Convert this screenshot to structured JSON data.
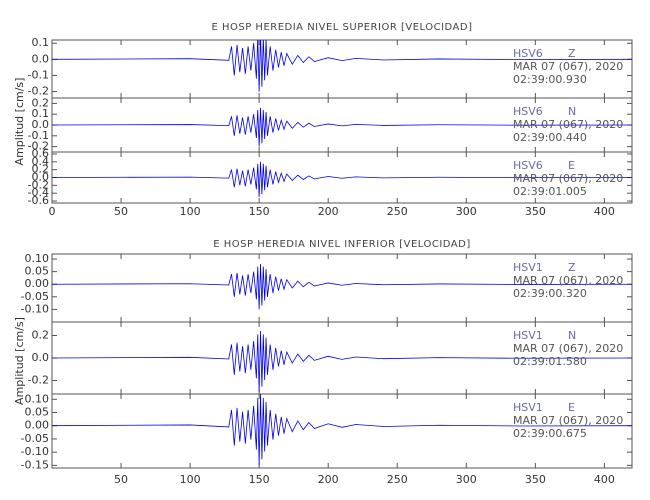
{
  "chart_data": [
    {
      "type": "line",
      "title": "E HOSP HEREDIA NIVEL SUPERIOR [VELOCIDAD]",
      "ylabel": "Amplitud [cm/s]",
      "xlim": [
        0,
        420
      ],
      "xticks": [
        0,
        50,
        100,
        150,
        200,
        250,
        300,
        350,
        400
      ],
      "x": [
        0,
        100,
        128,
        130,
        132,
        134,
        136,
        138,
        140,
        142,
        144,
        146,
        148,
        149,
        150,
        151,
        152,
        153,
        154,
        155,
        156,
        158,
        160,
        162,
        164,
        166,
        168,
        170,
        174,
        178,
        182,
        186,
        190,
        200,
        210,
        220,
        240,
        280,
        340,
        420
      ],
      "panels": [
        {
          "station": "HSV6",
          "component": "Z",
          "date": "MAR 07 (067), 2020",
          "time": "02:39:00.930",
          "color": "#0000ee",
          "ylim": [
            -0.24,
            0.12
          ],
          "yticks": [
            0.1,
            {
              "value": 0,
              "label": "0.0"
            },
            -0.1,
            -0.2
          ],
          "values": [
            0,
            0.004,
            -0.006,
            0.08,
            -0.1,
            0.09,
            -0.08,
            0.07,
            -0.09,
            0.08,
            -0.07,
            0.1,
            -0.12,
            0.14,
            -0.2,
            0.16,
            -0.17,
            0.14,
            -0.13,
            0.12,
            -0.1,
            0.08,
            -0.07,
            0.06,
            -0.05,
            0.044,
            -0.04,
            0.036,
            -0.03,
            0.024,
            -0.02,
            0.016,
            -0.014,
            0.01,
            -0.008,
            0.006,
            -0.004,
            0.0024,
            -0.0016,
            0
          ]
        },
        {
          "station": "HSV6",
          "component": "N",
          "date": "MAR 07 (067), 2020",
          "time": "02:39:00.440",
          "color": "#0000ee",
          "ylim": [
            -0.25,
            0.25
          ],
          "yticks": [
            0.2,
            0.1,
            {
              "value": 0,
              "label": "0.0"
            },
            -0.1,
            -0.2
          ],
          "values": [
            0,
            0.004,
            -0.006,
            0.08,
            -0.1,
            0.09,
            -0.08,
            0.07,
            -0.09,
            0.08,
            -0.07,
            0.1,
            -0.12,
            0.14,
            -0.2,
            0.16,
            -0.17,
            0.14,
            -0.13,
            0.12,
            -0.1,
            0.08,
            -0.07,
            0.06,
            -0.05,
            0.044,
            -0.04,
            0.036,
            -0.03,
            0.024,
            -0.02,
            0.016,
            -0.014,
            0.01,
            -0.008,
            0.006,
            -0.004,
            0.0024,
            -0.0016,
            0
          ]
        },
        {
          "station": "HSV6",
          "component": "E",
          "date": "MAR 07 (067), 2020",
          "time": "02:39:01.005",
          "color": "#0000ee",
          "ylim": [
            -0.65,
            0.65
          ],
          "yticks": [
            0.6,
            0.4,
            0.2,
            {
              "value": 0,
              "label": "0.0"
            },
            -0.2,
            -0.4,
            -0.6
          ],
          "values": [
            0,
            0.01,
            -0.015,
            0.2,
            -0.25,
            0.225,
            -0.2,
            0.175,
            -0.225,
            0.2,
            -0.175,
            0.25,
            -0.3,
            0.35,
            -0.5,
            0.4,
            -0.425,
            0.35,
            -0.325,
            0.3,
            -0.25,
            0.2,
            -0.175,
            0.15,
            -0.125,
            0.11,
            -0.1,
            0.09,
            -0.075,
            0.06,
            -0.05,
            0.04,
            -0.035,
            0.025,
            -0.02,
            0.015,
            -0.01,
            0.006,
            -0.004,
            0
          ]
        }
      ]
    },
    {
      "type": "line",
      "title": "E HOSP HEREDIA NIVEL INFERIOR [VELOCIDAD]",
      "ylabel": "Amplitud [cm/s]",
      "xlim": [
        0,
        420
      ],
      "xticks": [
        50,
        100,
        150,
        200,
        250,
        300,
        350,
        400
      ],
      "x": [
        0,
        100,
        128,
        130,
        132,
        134,
        136,
        138,
        140,
        142,
        144,
        146,
        148,
        149,
        150,
        151,
        152,
        153,
        154,
        155,
        156,
        158,
        160,
        162,
        164,
        166,
        168,
        170,
        174,
        178,
        182,
        186,
        190,
        200,
        210,
        220,
        240,
        280,
        340,
        420
      ],
      "panels": [
        {
          "station": "HSV1",
          "component": "Z",
          "date": "MAR 07 (067), 2020",
          "time": "02:39:00.320",
          "color": "#0000ee",
          "ylim": [
            -0.15,
            0.12
          ],
          "yticks": [
            {
              "value": 0.1,
              "label": "0.10"
            },
            0.05,
            {
              "value": 0,
              "label": "0.00"
            },
            -0.05,
            {
              "value": -0.1,
              "label": "-0.10"
            }
          ],
          "values": [
            0,
            0.002,
            -0.003,
            0.04,
            -0.05,
            0.045,
            -0.04,
            0.035,
            -0.045,
            0.04,
            -0.035,
            0.05,
            -0.06,
            0.07,
            -0.1,
            0.08,
            -0.085,
            0.07,
            -0.065,
            0.06,
            -0.05,
            0.04,
            -0.035,
            0.03,
            -0.025,
            0.022,
            -0.02,
            0.018,
            -0.015,
            0.012,
            -0.01,
            0.008,
            -0.007,
            0.005,
            -0.004,
            0.003,
            -0.002,
            0.0012,
            -0.0008,
            0
          ]
        },
        {
          "station": "HSV1",
          "component": "N",
          "date": "MAR 07 (067), 2020",
          "time": "02:39:01.580",
          "color": "#0000ee",
          "ylim": [
            -0.32,
            0.32
          ],
          "yticks": [
            0.2,
            {
              "value": 0,
              "label": "0.0"
            },
            -0.2
          ],
          "values": [
            0,
            0.006,
            -0.009,
            0.12,
            -0.15,
            0.135,
            -0.12,
            0.105,
            -0.135,
            0.12,
            -0.105,
            0.15,
            -0.18,
            0.21,
            -0.3,
            0.24,
            -0.255,
            0.21,
            -0.195,
            0.18,
            -0.15,
            0.12,
            -0.105,
            0.09,
            -0.075,
            0.066,
            -0.06,
            0.054,
            -0.045,
            0.036,
            -0.03,
            0.024,
            -0.021,
            0.015,
            -0.012,
            0.009,
            -0.006,
            0.0036,
            -0.0024,
            0
          ]
        },
        {
          "station": "HSV1",
          "component": "E",
          "date": "MAR 07 (067), 2020",
          "time": "02:39:00.675",
          "color": "#0000ee",
          "ylim": [
            -0.16,
            0.12
          ],
          "yticks": [
            {
              "value": 0.1,
              "label": "0.10"
            },
            0.05,
            {
              "value": 0,
              "label": "0.00"
            },
            -0.05,
            {
              "value": -0.1,
              "label": "-0.10"
            },
            -0.15
          ],
          "values": [
            0,
            0.003,
            -0.0045,
            0.06,
            -0.075,
            0.0675,
            -0.06,
            0.0525,
            -0.0675,
            0.06,
            -0.0525,
            0.075,
            -0.09,
            0.105,
            -0.15,
            0.12,
            -0.1275,
            0.105,
            -0.0975,
            0.09,
            -0.075,
            0.06,
            -0.0525,
            0.045,
            -0.0375,
            0.033,
            -0.03,
            0.027,
            -0.0225,
            0.018,
            -0.015,
            0.012,
            -0.0105,
            0.0075,
            -0.006,
            0.0045,
            -0.003,
            0.0018,
            -0.0012,
            0
          ]
        }
      ]
    }
  ]
}
